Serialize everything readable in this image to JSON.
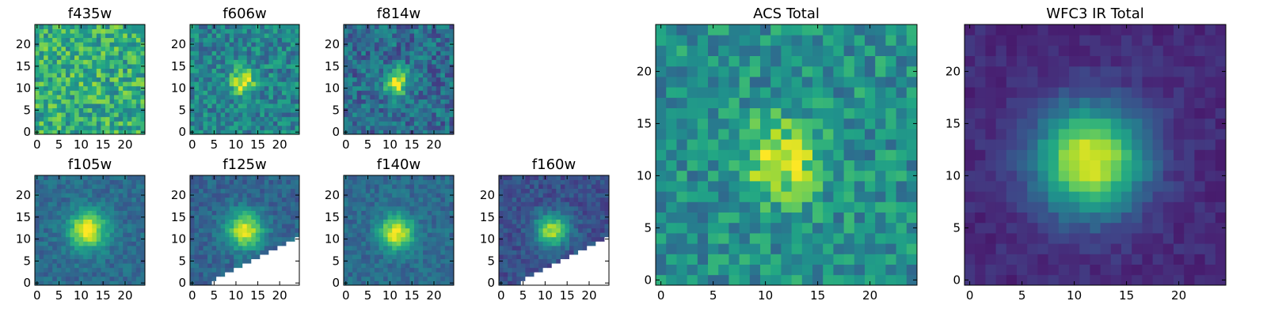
{
  "chart_data": [
    {
      "type": "heatmap",
      "title": "f435w",
      "xticks": [
        "0",
        "5",
        "10",
        "15",
        "20"
      ],
      "yticks": [
        "0",
        "5",
        "10",
        "15",
        "20"
      ],
      "xlim": [
        0,
        25
      ],
      "ylim": [
        0,
        25
      ],
      "grid": false,
      "peak": [
        11.5,
        11.5
      ],
      "sigma": 2.2,
      "signal": 0.05,
      "noise": 0.45,
      "base": 0.62,
      "mask": "none"
    },
    {
      "type": "heatmap",
      "title": "f606w",
      "xticks": [
        "0",
        "5",
        "10",
        "15",
        "20"
      ],
      "yticks": [
        "0",
        "5",
        "10",
        "15",
        "20"
      ],
      "xlim": [
        0,
        25
      ],
      "ylim": [
        0,
        25
      ],
      "grid": false,
      "peak": [
        11.5,
        11.5
      ],
      "sigma": 2.0,
      "signal": 0.55,
      "noise": 0.35,
      "base": 0.45,
      "mask": "none"
    },
    {
      "type": "heatmap",
      "title": "f814w",
      "xticks": [
        "0",
        "5",
        "10",
        "15",
        "20"
      ],
      "yticks": [
        "0",
        "5",
        "10",
        "15",
        "20"
      ],
      "xlim": [
        0,
        25
      ],
      "ylim": [
        0,
        25
      ],
      "grid": false,
      "peak": [
        11.5,
        11.5
      ],
      "sigma": 2.0,
      "signal": 0.65,
      "noise": 0.35,
      "base": 0.35,
      "mask": "none"
    },
    {
      "type": "heatmap",
      "title": "f105w",
      "xticks": [
        "0",
        "5",
        "10",
        "15",
        "20"
      ],
      "yticks": [
        "0",
        "5",
        "10",
        "15",
        "20"
      ],
      "xlim": [
        0,
        25
      ],
      "ylim": [
        0,
        25
      ],
      "grid": false,
      "peak": [
        11.5,
        12
      ],
      "sigma": 3.0,
      "signal": 0.65,
      "noise": 0.18,
      "base": 0.35,
      "mask": "none"
    },
    {
      "type": "heatmap",
      "title": "f125w",
      "xticks": [
        "0",
        "5",
        "10",
        "15",
        "20"
      ],
      "yticks": [
        "0",
        "5",
        "10",
        "15",
        "20"
      ],
      "xlim": [
        0,
        25
      ],
      "ylim": [
        0,
        25
      ],
      "grid": false,
      "peak": [
        12,
        12
      ],
      "sigma": 3.0,
      "signal": 0.62,
      "noise": 0.18,
      "base": 0.32,
      "mask": "diagonal-4"
    },
    {
      "type": "heatmap",
      "title": "f140w",
      "xticks": [
        "0",
        "5",
        "10",
        "15",
        "20"
      ],
      "yticks": [
        "0",
        "5",
        "10",
        "15",
        "20"
      ],
      "xlim": [
        0,
        25
      ],
      "ylim": [
        0,
        25
      ],
      "grid": false,
      "peak": [
        11.5,
        11.5
      ],
      "sigma": 2.6,
      "signal": 0.65,
      "noise": 0.18,
      "base": 0.35,
      "mask": "none"
    },
    {
      "type": "heatmap",
      "title": "f160w",
      "xticks": [
        "0",
        "5",
        "10",
        "15",
        "20"
      ],
      "yticks": [
        "0",
        "5",
        "10",
        "15",
        "20"
      ],
      "xlim": [
        0,
        25
      ],
      "ylim": [
        0,
        25
      ],
      "grid": false,
      "peak": [
        11.5,
        12
      ],
      "sigma": 2.6,
      "signal": 0.62,
      "noise": 0.18,
      "base": 0.25,
      "mask": "diagonal-4"
    },
    {
      "type": "heatmap",
      "title": "ACS Total",
      "xticks": [
        "0",
        "5",
        "10",
        "15",
        "20"
      ],
      "yticks": [
        "0",
        "5",
        "10",
        "15",
        "20"
      ],
      "xlim": [
        0,
        25
      ],
      "ylim": [
        0,
        25
      ],
      "grid": false,
      "peak": [
        11.5,
        11.5
      ],
      "sigma": 2.6,
      "signal": 0.45,
      "noise": 0.35,
      "base": 0.5,
      "mask": "none"
    },
    {
      "type": "heatmap",
      "title": "WFC3 IR Total",
      "xticks": [
        "0",
        "5",
        "10",
        "15",
        "20"
      ],
      "yticks": [
        "0",
        "5",
        "10",
        "15",
        "20"
      ],
      "xlim": [
        0,
        25
      ],
      "ylim": [
        0,
        25
      ],
      "grid": false,
      "peak": [
        11.5,
        11.5
      ],
      "sigma": 3.6,
      "signal": 0.85,
      "noise": 0.1,
      "base": 0.12,
      "mask": "none"
    }
  ],
  "colors": {
    "colormap": "viridis",
    "masked": "#ffffff",
    "frame": "#000000"
  }
}
